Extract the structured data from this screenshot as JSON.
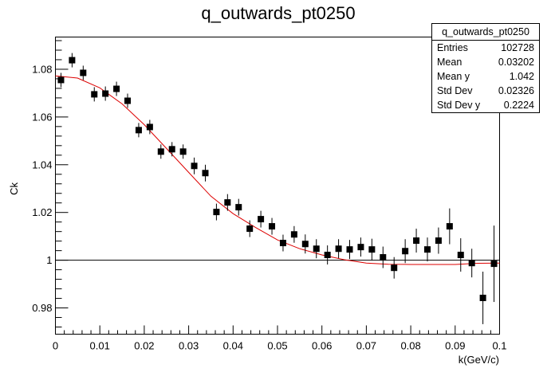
{
  "chart_data": {
    "type": "scatter",
    "title": "q_outwards_pt0250",
    "xlabel": "k(GeV/c)",
    "ylabel": "Ck",
    "xlim": [
      0,
      0.1
    ],
    "ylim": [
      0.969,
      1.0935
    ],
    "x_ticks": [
      "0",
      "0.01",
      "0.02",
      "0.03",
      "0.04",
      "0.05",
      "0.06",
      "0.07",
      "0.08",
      "0.09",
      "0.1"
    ],
    "y_ticks": [
      "0.98",
      "1",
      "1.02",
      "1.04",
      "1.06",
      "1.08"
    ],
    "reference_line_y": 1,
    "series": [
      {
        "kind": "points",
        "color": "#000000",
        "points": [
          {
            "x": 0.00125,
            "y": 1.0755,
            "err": 0.003
          },
          {
            "x": 0.00375,
            "y": 1.0838,
            "err": 0.003
          },
          {
            "x": 0.00625,
            "y": 1.0785,
            "err": 0.003
          },
          {
            "x": 0.00875,
            "y": 1.0695,
            "err": 0.003
          },
          {
            "x": 0.01125,
            "y": 1.0698,
            "err": 0.003
          },
          {
            "x": 0.01375,
            "y": 1.0718,
            "err": 0.003
          },
          {
            "x": 0.01625,
            "y": 1.0668,
            "err": 0.003
          },
          {
            "x": 0.01875,
            "y": 1.0545,
            "err": 0.003
          },
          {
            "x": 0.02125,
            "y": 1.0558,
            "err": 0.003
          },
          {
            "x": 0.02375,
            "y": 1.0455,
            "err": 0.003
          },
          {
            "x": 0.02625,
            "y": 1.0465,
            "err": 0.003
          },
          {
            "x": 0.02875,
            "y": 1.0455,
            "err": 0.003
          },
          {
            "x": 0.03125,
            "y": 1.0395,
            "err": 0.0035
          },
          {
            "x": 0.03375,
            "y": 1.0365,
            "err": 0.0035
          },
          {
            "x": 0.03625,
            "y": 1.0202,
            "err": 0.0035
          },
          {
            "x": 0.03875,
            "y": 1.0242,
            "err": 0.0035
          },
          {
            "x": 0.04125,
            "y": 1.0222,
            "err": 0.0035
          },
          {
            "x": 0.04375,
            "y": 1.0132,
            "err": 0.0035
          },
          {
            "x": 0.04625,
            "y": 1.0172,
            "err": 0.0035
          },
          {
            "x": 0.04875,
            "y": 1.0142,
            "err": 0.0035
          },
          {
            "x": 0.05125,
            "y": 1.0072,
            "err": 0.0035
          },
          {
            "x": 0.05375,
            "y": 1.0108,
            "err": 0.0035
          },
          {
            "x": 0.05625,
            "y": 1.0068,
            "err": 0.004
          },
          {
            "x": 0.05875,
            "y": 1.0048,
            "err": 0.004
          },
          {
            "x": 0.06125,
            "y": 1.0022,
            "err": 0.004
          },
          {
            "x": 0.06375,
            "y": 1.0048,
            "err": 0.004
          },
          {
            "x": 0.06625,
            "y": 1.0045,
            "err": 0.004
          },
          {
            "x": 0.06875,
            "y": 1.0055,
            "err": 0.004
          },
          {
            "x": 0.07125,
            "y": 1.0045,
            "err": 0.0045
          },
          {
            "x": 0.07375,
            "y": 1.0012,
            "err": 0.0045
          },
          {
            "x": 0.07625,
            "y": 0.9968,
            "err": 0.0045
          },
          {
            "x": 0.07875,
            "y": 1.0038,
            "err": 0.005
          },
          {
            "x": 0.08125,
            "y": 1.0082,
            "err": 0.005
          },
          {
            "x": 0.08375,
            "y": 1.0045,
            "err": 0.005
          },
          {
            "x": 0.08625,
            "y": 1.0082,
            "err": 0.0055
          },
          {
            "x": 0.08875,
            "y": 1.0142,
            "err": 0.0075
          },
          {
            "x": 0.09125,
            "y": 1.0022,
            "err": 0.007
          },
          {
            "x": 0.09375,
            "y": 0.9988,
            "err": 0.006
          },
          {
            "x": 0.09625,
            "y": 0.9842,
            "err": 0.011
          },
          {
            "x": 0.09875,
            "y": 0.9985,
            "err": 0.016
          }
        ]
      },
      {
        "kind": "curve",
        "color": "#dd0000",
        "x": [
          0,
          0.005,
          0.01,
          0.015,
          0.02,
          0.025,
          0.03,
          0.035,
          0.04,
          0.045,
          0.05,
          0.055,
          0.06,
          0.065,
          0.07,
          0.075,
          0.08,
          0.085,
          0.09,
          0.095,
          0.1
        ],
        "y": [
          1.0772,
          1.0763,
          1.0722,
          1.0655,
          1.0568,
          1.0468,
          1.0368,
          1.0268,
          1.0195,
          1.0138,
          1.0085,
          1.0048,
          1.0022,
          1.0002,
          0.9988,
          0.9983,
          0.9982,
          0.9982,
          0.9982,
          0.9987,
          0.9988
        ]
      }
    ]
  },
  "stats": {
    "title": "q_outwards_pt0250",
    "rows": [
      {
        "label": "Entries",
        "value": "102728"
      },
      {
        "label": "Mean",
        "value": "0.03202"
      },
      {
        "label": "Mean y",
        "value": "1.042"
      },
      {
        "label": "Std Dev",
        "value": "0.02326"
      },
      {
        "label": "Std Dev y",
        "value": "0.2224"
      }
    ]
  }
}
